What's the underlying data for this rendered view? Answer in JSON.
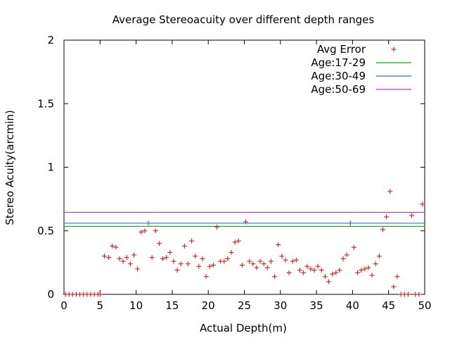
{
  "chart_data": {
    "type": "scatter",
    "title": "Average Stereoacuity over different depth ranges",
    "xlabel": "Actual Depth(m)",
    "ylabel": "Stereo Acuity(arcmin)",
    "xlim": [
      0,
      50
    ],
    "ylim": [
      0,
      2
    ],
    "x_ticks": [
      "0",
      "5",
      "10",
      "15",
      "20",
      "25",
      "30",
      "35",
      "40",
      "45",
      "50"
    ],
    "y_ticks": [
      "0",
      "0.5",
      "1",
      "1.5",
      "2"
    ],
    "grid": false,
    "legend_position": "top-right",
    "series": [
      {
        "name": "Avg Error",
        "kind": "points",
        "color": "#cc1f1f",
        "points": [
          [
            0.2,
            0.0
          ],
          [
            0.7,
            0.0
          ],
          [
            1.2,
            0.0
          ],
          [
            1.7,
            0.0
          ],
          [
            2.2,
            0.0
          ],
          [
            2.7,
            0.0
          ],
          [
            3.2,
            0.0
          ],
          [
            3.7,
            0.0
          ],
          [
            4.2,
            0.0
          ],
          [
            4.7,
            0.0
          ],
          [
            5.0,
            0.0
          ],
          [
            5.6,
            0.3
          ],
          [
            6.2,
            0.29
          ],
          [
            6.7,
            0.38
          ],
          [
            7.2,
            0.37
          ],
          [
            7.7,
            0.28
          ],
          [
            8.2,
            0.26
          ],
          [
            8.7,
            0.29
          ],
          [
            9.2,
            0.24
          ],
          [
            9.7,
            0.31
          ],
          [
            10.2,
            0.2
          ],
          [
            10.7,
            0.49
          ],
          [
            11.2,
            0.5
          ],
          [
            11.7,
            0.56
          ],
          [
            12.2,
            0.29
          ],
          [
            12.7,
            0.5
          ],
          [
            13.2,
            0.4
          ],
          [
            13.7,
            0.28
          ],
          [
            14.2,
            0.29
          ],
          [
            14.7,
            0.33
          ],
          [
            15.2,
            0.26
          ],
          [
            15.7,
            0.19
          ],
          [
            16.2,
            0.24
          ],
          [
            16.7,
            0.38
          ],
          [
            17.2,
            0.24
          ],
          [
            17.7,
            0.42
          ],
          [
            18.2,
            0.3
          ],
          [
            18.7,
            0.22
          ],
          [
            19.2,
            0.28
          ],
          [
            19.7,
            0.14
          ],
          [
            20.2,
            0.22
          ],
          [
            20.7,
            0.23
          ],
          [
            21.2,
            0.53
          ],
          [
            21.7,
            0.26
          ],
          [
            22.2,
            0.26
          ],
          [
            22.7,
            0.28
          ],
          [
            23.2,
            0.33
          ],
          [
            23.7,
            0.41
          ],
          [
            24.2,
            0.42
          ],
          [
            24.7,
            0.23
          ],
          [
            25.2,
            0.57
          ],
          [
            25.7,
            0.26
          ],
          [
            26.2,
            0.24
          ],
          [
            26.7,
            0.21
          ],
          [
            27.2,
            0.26
          ],
          [
            27.7,
            0.24
          ],
          [
            28.2,
            0.21
          ],
          [
            28.7,
            0.26
          ],
          [
            29.2,
            0.14
          ],
          [
            29.7,
            0.39
          ],
          [
            30.2,
            0.3
          ],
          [
            30.7,
            0.27
          ],
          [
            31.2,
            0.17
          ],
          [
            31.7,
            0.26
          ],
          [
            32.2,
            0.27
          ],
          [
            32.7,
            0.19
          ],
          [
            33.2,
            0.17
          ],
          [
            33.7,
            0.22
          ],
          [
            34.2,
            0.2
          ],
          [
            34.7,
            0.19
          ],
          [
            35.2,
            0.22
          ],
          [
            35.7,
            0.19
          ],
          [
            36.2,
            0.14
          ],
          [
            36.7,
            0.1
          ],
          [
            37.2,
            0.16
          ],
          [
            37.7,
            0.17
          ],
          [
            38.2,
            0.19
          ],
          [
            38.7,
            0.28
          ],
          [
            39.2,
            0.31
          ],
          [
            39.7,
            0.56
          ],
          [
            40.2,
            0.37
          ],
          [
            40.7,
            0.17
          ],
          [
            41.2,
            0.19
          ],
          [
            41.7,
            0.2
          ],
          [
            42.2,
            0.21
          ],
          [
            42.7,
            0.15
          ],
          [
            43.2,
            0.24
          ],
          [
            43.7,
            0.3
          ],
          [
            44.2,
            0.51
          ],
          [
            44.7,
            0.61
          ],
          [
            45.2,
            0.81
          ],
          [
            45.7,
            0.06
          ],
          [
            46.2,
            0.14
          ],
          [
            46.7,
            0.0
          ],
          [
            47.2,
            0.0
          ],
          [
            47.7,
            0.0
          ],
          [
            48.2,
            0.62
          ],
          [
            48.7,
            0.0
          ],
          [
            49.2,
            0.0
          ],
          [
            49.7,
            0.71
          ]
        ]
      },
      {
        "name": "Age:17-29",
        "kind": "hline",
        "y": 0.535,
        "color": "#1fa31f"
      },
      {
        "name": "Age:30-49",
        "kind": "hline",
        "y": 0.56,
        "color": "#2b7bc9"
      },
      {
        "name": "Age:50-69",
        "kind": "hline",
        "y": 0.645,
        "color": "#b13bc9"
      }
    ]
  }
}
